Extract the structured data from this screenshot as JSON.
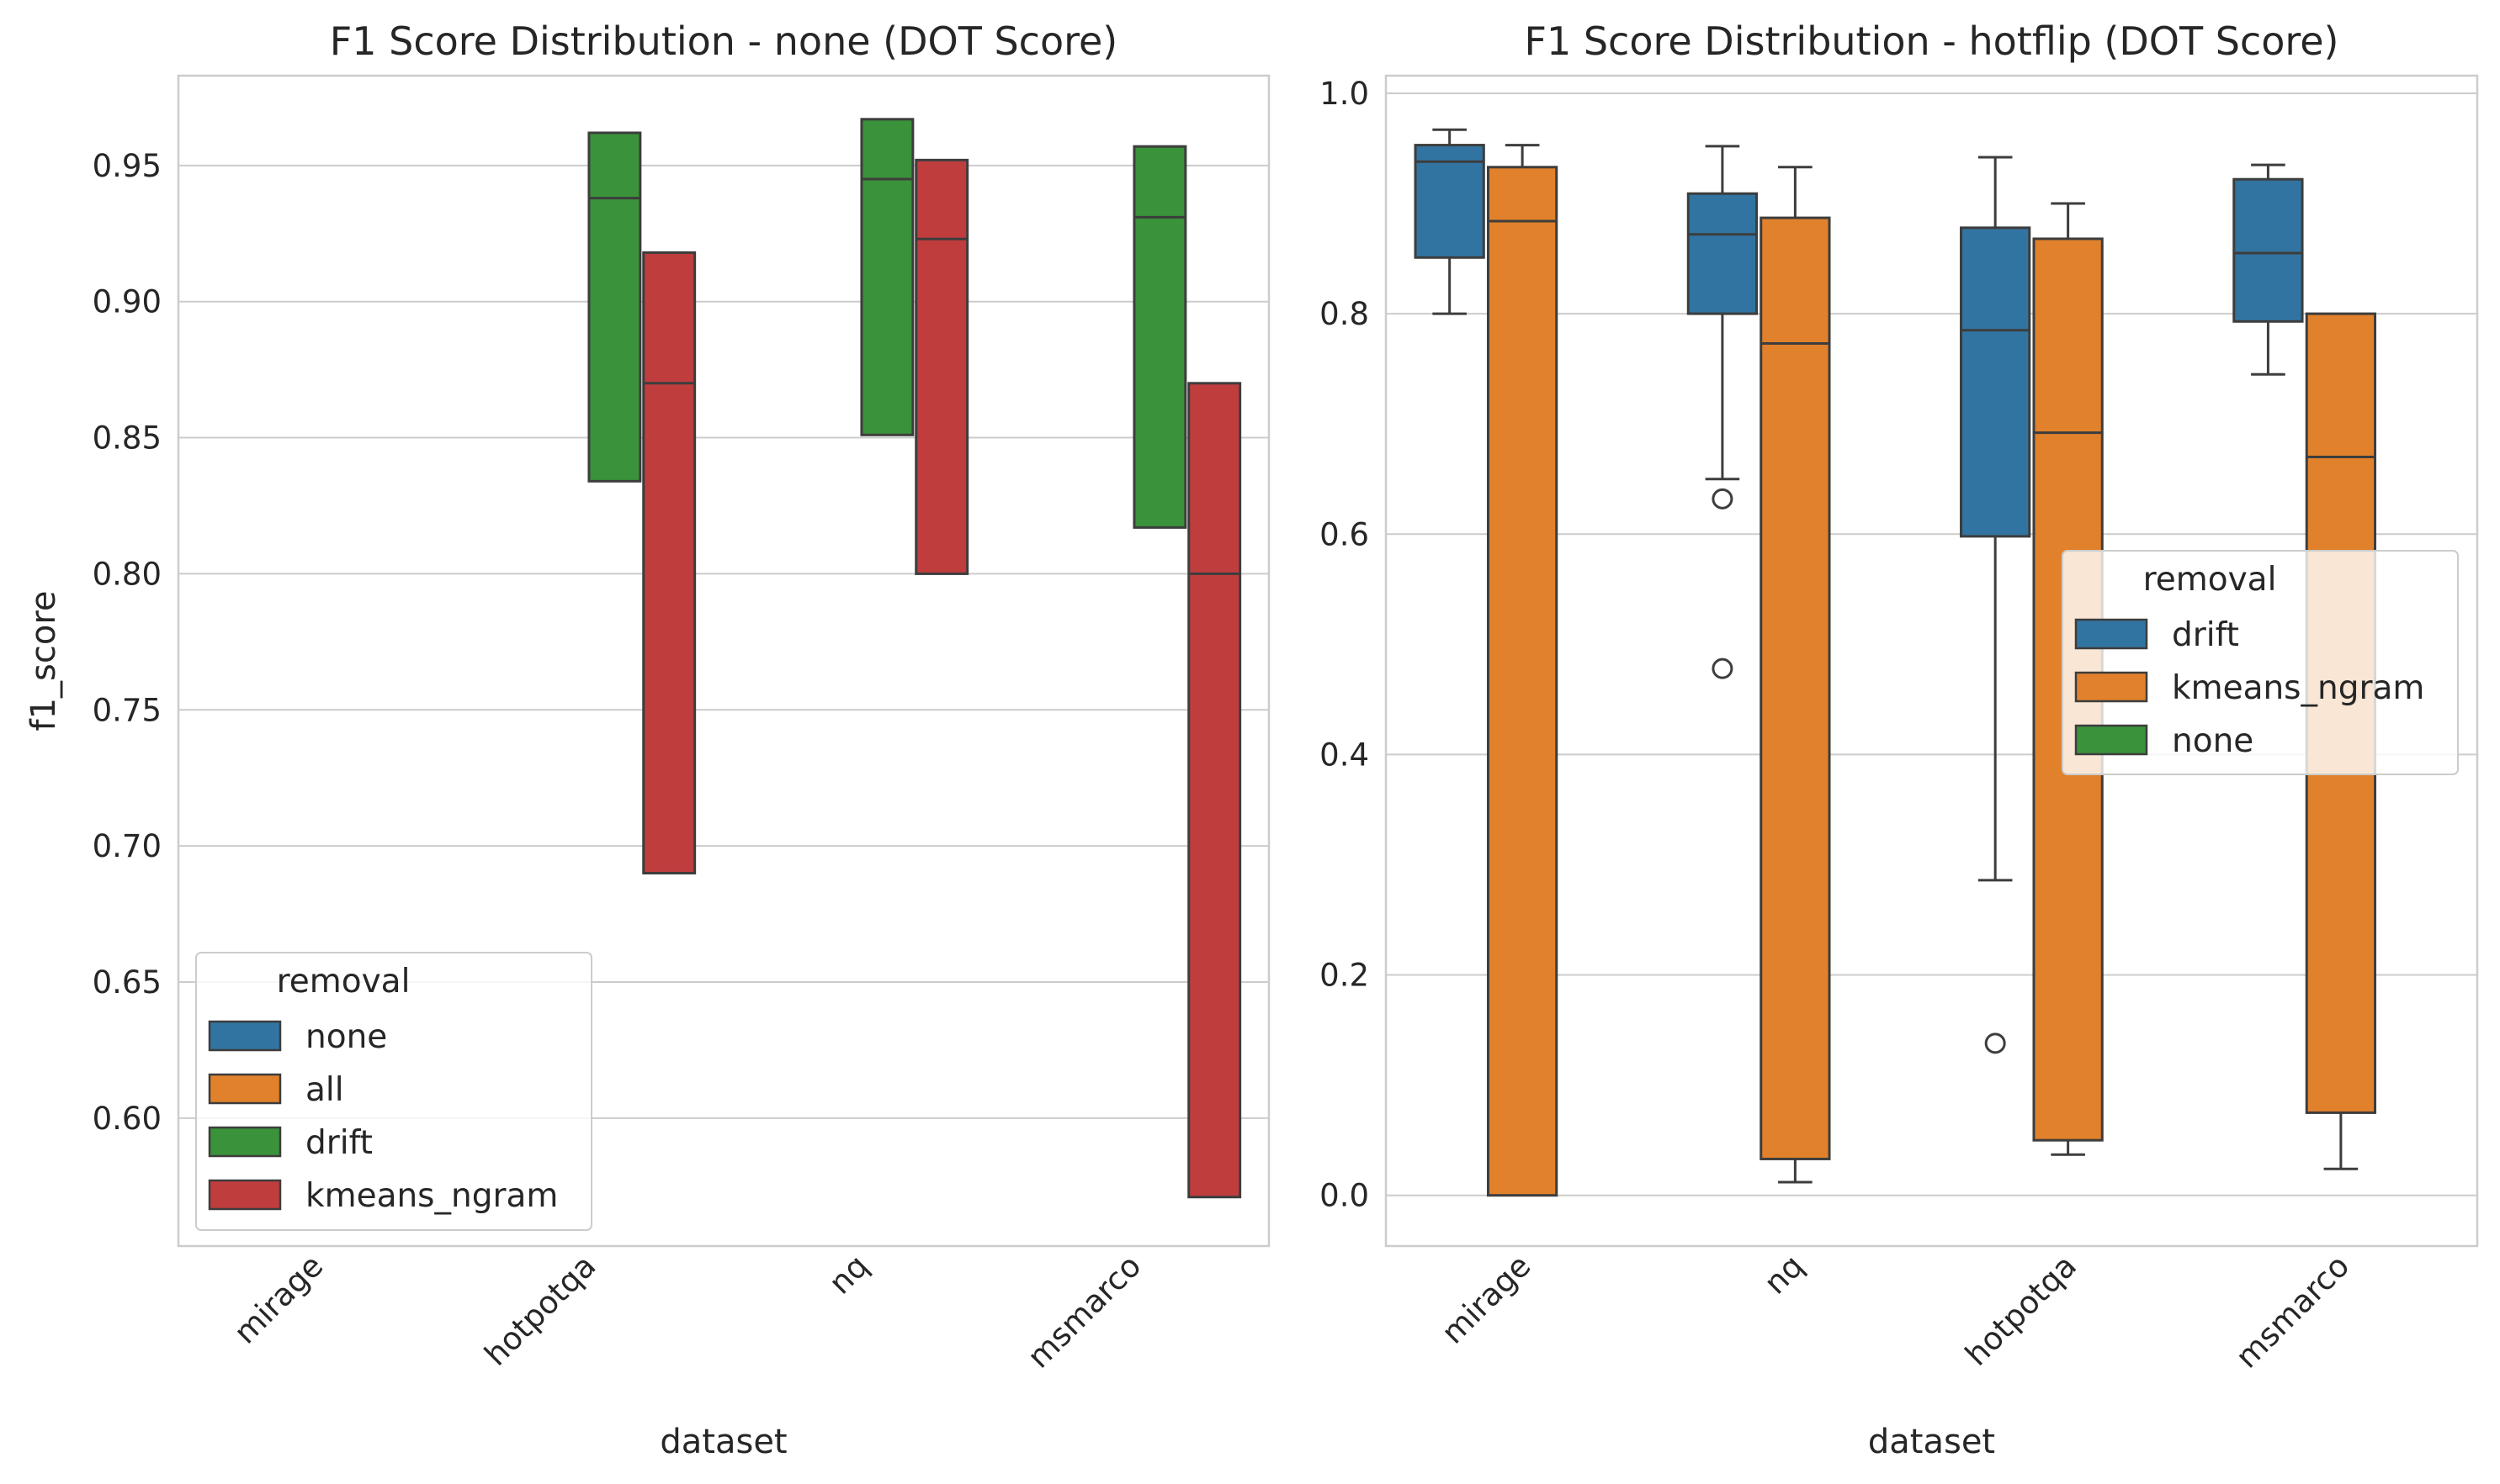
{
  "chart_data": [
    {
      "type": "box",
      "title": "F1 Score Distribution - none (DOT Score)",
      "xlabel": "dataset",
      "ylabel": "f1_score",
      "categories": [
        "mirage",
        "hotpotqa",
        "nq",
        "msmarco"
      ],
      "ylim": [
        0.553,
        0.983
      ],
      "yticks": [
        "0.60",
        "0.65",
        "0.70",
        "0.75",
        "0.80",
        "0.85",
        "0.90",
        "0.95"
      ],
      "grid": true,
      "legend": {
        "title": "removal",
        "placement": "lower-left",
        "entries": [
          {
            "label": "none",
            "color": "#3274a1"
          },
          {
            "label": "all",
            "color": "#e1812c"
          },
          {
            "label": "drift",
            "color": "#3a923a"
          },
          {
            "label": "kmeans_ngram",
            "color": "#c03d3e"
          }
        ]
      },
      "hue_order": [
        "none",
        "all",
        "drift",
        "kmeans_ngram"
      ],
      "series": [
        {
          "name": "drift",
          "color": "#3a923a",
          "boxes": [
            {
              "category": "hotpotqa",
              "q1": 0.834,
              "median": 0.938,
              "q3": 0.962
            },
            {
              "category": "nq",
              "q1": 0.851,
              "median": 0.945,
              "q3": 0.967
            },
            {
              "category": "msmarco",
              "q1": 0.817,
              "median": 0.931,
              "q3": 0.957
            }
          ]
        },
        {
          "name": "kmeans_ngram",
          "color": "#c03d3e",
          "boxes": [
            {
              "category": "hotpotqa",
              "q1": 0.69,
              "median": 0.87,
              "q3": 0.918
            },
            {
              "category": "nq",
              "q1": 0.8,
              "median": 0.923,
              "q3": 0.952
            },
            {
              "category": "msmarco",
              "q1": 0.571,
              "median": 0.8,
              "q3": 0.87
            }
          ]
        }
      ]
    },
    {
      "type": "box",
      "title": "F1 Score Distribution - hotflip (DOT Score)",
      "xlabel": "dataset",
      "ylabel": "",
      "categories": [
        "mirage",
        "nq",
        "hotpotqa",
        "msmarco"
      ],
      "ylim": [
        -0.046,
        1.016
      ],
      "yticks": [
        "0.0",
        "0.2",
        "0.4",
        "0.6",
        "0.8",
        "1.0"
      ],
      "grid": true,
      "legend": {
        "title": "removal",
        "placement": "center-right",
        "entries": [
          {
            "label": "drift",
            "color": "#3274a1"
          },
          {
            "label": "kmeans_ngram",
            "color": "#e1812c"
          },
          {
            "label": "none",
            "color": "#3a923a"
          }
        ]
      },
      "hue_order": [
        "drift",
        "kmeans_ngram",
        "none"
      ],
      "series": [
        {
          "name": "drift",
          "color": "#3274a1",
          "boxes": [
            {
              "category": "mirage",
              "whislo": 0.8,
              "q1": 0.851,
              "median": 0.938,
              "q3": 0.953,
              "whishi": 0.967,
              "fliers": []
            },
            {
              "category": "nq",
              "whislo": 0.65,
              "q1": 0.8,
              "median": 0.872,
              "q3": 0.909,
              "whishi": 0.952,
              "fliers": [
                0.632,
                0.478
              ]
            },
            {
              "category": "hotpotqa",
              "whislo": 0.286,
              "q1": 0.598,
              "median": 0.785,
              "q3": 0.878,
              "whishi": 0.942,
              "fliers": [
                0.138
              ]
            },
            {
              "category": "msmarco",
              "whislo": 0.745,
              "q1": 0.793,
              "median": 0.855,
              "q3": 0.922,
              "whishi": 0.935,
              "fliers": []
            }
          ]
        },
        {
          "name": "kmeans_ngram",
          "color": "#e1812c",
          "boxes": [
            {
              "category": "mirage",
              "whislo": 0.0,
              "q1": 0.0,
              "median": 0.884,
              "q3": 0.933,
              "whishi": 0.953,
              "fliers": []
            },
            {
              "category": "nq",
              "whislo": 0.012,
              "q1": 0.033,
              "median": 0.773,
              "q3": 0.887,
              "whishi": 0.933,
              "fliers": []
            },
            {
              "category": "hotpotqa",
              "whislo": 0.037,
              "q1": 0.05,
              "median": 0.692,
              "q3": 0.868,
              "whishi": 0.9,
              "fliers": []
            },
            {
              "category": "msmarco",
              "whislo": 0.024,
              "q1": 0.075,
              "median": 0.67,
              "q3": 0.8,
              "whishi": 0.8,
              "fliers": []
            }
          ]
        }
      ]
    }
  ]
}
